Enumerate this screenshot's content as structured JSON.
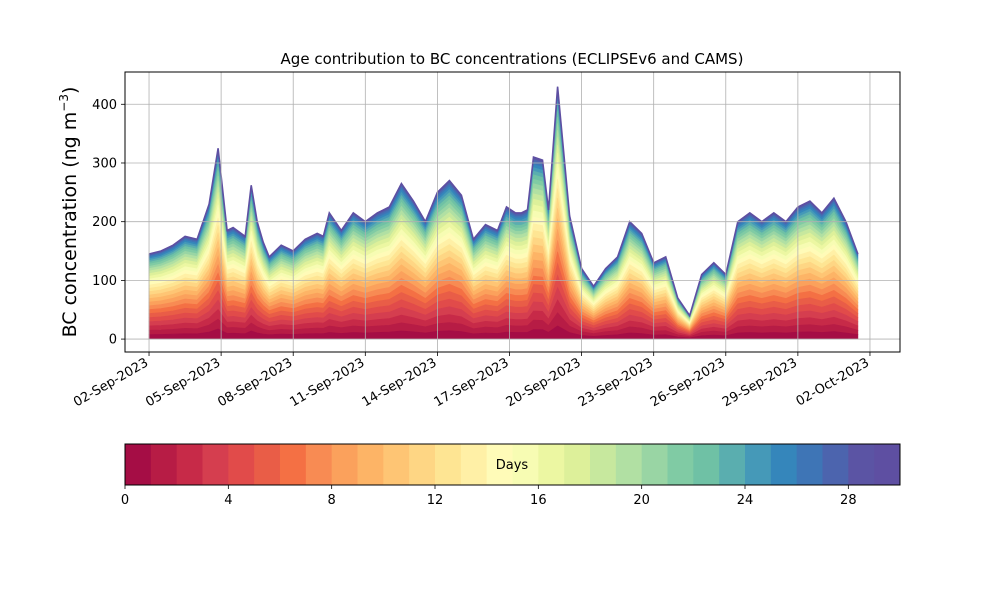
{
  "chart_data": {
    "type": "area",
    "title": "Age contribution to BC concentrations (ECLIPSEv6 and CAMS)",
    "ylabel_main": "BC concentration (ng m",
    "ylabel_sup": "−3",
    "ylabel_close": ")",
    "xlabel": "",
    "xlim": [
      "2023-09-01 00:00",
      "2023-10-03 06:00"
    ],
    "ylim": [
      -22,
      455
    ],
    "grid": true,
    "yticks": [
      0,
      100,
      200,
      300,
      400
    ],
    "xtick_dates": [
      "2023-09-02",
      "2023-09-05",
      "2023-09-08",
      "2023-09-11",
      "2023-09-14",
      "2023-09-17",
      "2023-09-20",
      "2023-09-23",
      "2023-09-26",
      "2023-09-29",
      "2023-10-02"
    ],
    "xtick_labels": [
      "02-Sep-2023",
      "05-Sep-2023",
      "08-Sep-2023",
      "11-Sep-2023",
      "14-Sep-2023",
      "17-Sep-2023",
      "20-Sep-2023",
      "23-Sep-2023",
      "26-Sep-2023",
      "29-Sep-2023",
      "02-Oct-2023"
    ],
    "total_series": {
      "x": [
        "2023-09-02 00:00",
        "2023-09-02 12:00",
        "2023-09-03 00:00",
        "2023-09-03 12:00",
        "2023-09-04 00:00",
        "2023-09-04 12:00",
        "2023-09-04 21:00",
        "2023-09-05 06:00",
        "2023-09-05 12:00",
        "2023-09-06 00:00",
        "2023-09-06 06:00",
        "2023-09-06 12:00",
        "2023-09-06 18:00",
        "2023-09-07 00:00",
        "2023-09-07 12:00",
        "2023-09-08 00:00",
        "2023-09-08 12:00",
        "2023-09-09 00:00",
        "2023-09-09 06:00",
        "2023-09-09 12:00",
        "2023-09-10 00:00",
        "2023-09-10 12:00",
        "2023-09-11 00:00",
        "2023-09-11 12:00",
        "2023-09-12 00:00",
        "2023-09-12 12:00",
        "2023-09-13 00:00",
        "2023-09-13 12:00",
        "2023-09-14 00:00",
        "2023-09-14 12:00",
        "2023-09-15 00:00",
        "2023-09-15 12:00",
        "2023-09-16 00:00",
        "2023-09-16 12:00",
        "2023-09-16 21:00",
        "2023-09-17 06:00",
        "2023-09-17 12:00",
        "2023-09-17 18:00",
        "2023-09-18 00:00",
        "2023-09-18 09:00",
        "2023-09-18 15:00",
        "2023-09-19 00:00",
        "2023-09-19 12:00",
        "2023-09-20 00:00",
        "2023-09-20 12:00",
        "2023-09-21 00:00",
        "2023-09-21 12:00",
        "2023-09-22 00:00",
        "2023-09-22 12:00",
        "2023-09-23 00:00",
        "2023-09-23 12:00",
        "2023-09-24 00:00",
        "2023-09-24 12:00",
        "2023-09-25 00:00",
        "2023-09-25 12:00",
        "2023-09-26 00:00",
        "2023-09-26 12:00",
        "2023-09-27 00:00",
        "2023-09-27 12:00",
        "2023-09-28 00:00",
        "2023-09-28 12:00",
        "2023-09-29 00:00",
        "2023-09-29 12:00",
        "2023-09-30 00:00",
        "2023-09-30 12:00",
        "2023-10-01 00:00",
        "2023-10-01 12:00"
      ],
      "values": [
        145,
        150,
        160,
        175,
        170,
        230,
        325,
        185,
        190,
        175,
        262,
        200,
        165,
        140,
        160,
        150,
        170,
        180,
        175,
        215,
        185,
        215,
        200,
        215,
        225,
        265,
        235,
        200,
        250,
        270,
        245,
        170,
        195,
        185,
        225,
        215,
        215,
        220,
        310,
        305,
        220,
        430,
        210,
        120,
        90,
        120,
        140,
        200,
        180,
        130,
        140,
        70,
        40,
        110,
        130,
        110,
        200,
        215,
        200,
        215,
        200,
        225,
        235,
        215,
        240,
        200,
        145
      ]
    },
    "colorbar": {
      "label": "Days",
      "ticks": [
        0,
        4,
        8,
        12,
        16,
        20,
        24,
        28
      ],
      "range": [
        0,
        30
      ],
      "colors": [
        "#a50d45",
        "#b71c45",
        "#c72a48",
        "#d53e4f",
        "#e14b4a",
        "#e95d47",
        "#f47044",
        "#f88b53",
        "#fba15c",
        "#fdb466",
        "#fec574",
        "#fed684",
        "#fee593",
        "#fff0a6",
        "#fffbb8",
        "#f7fcb3",
        "#ecf7a2",
        "#ddf09a",
        "#c7e89e",
        "#b1e0a3",
        "#99d5a4",
        "#80cba4",
        "#6fc1a5",
        "#5aaeaf",
        "#4599b8",
        "#3586bb",
        "#3e75b6",
        "#4c64ae",
        "#5b54a4",
        "#5e4fa2"
      ]
    }
  }
}
